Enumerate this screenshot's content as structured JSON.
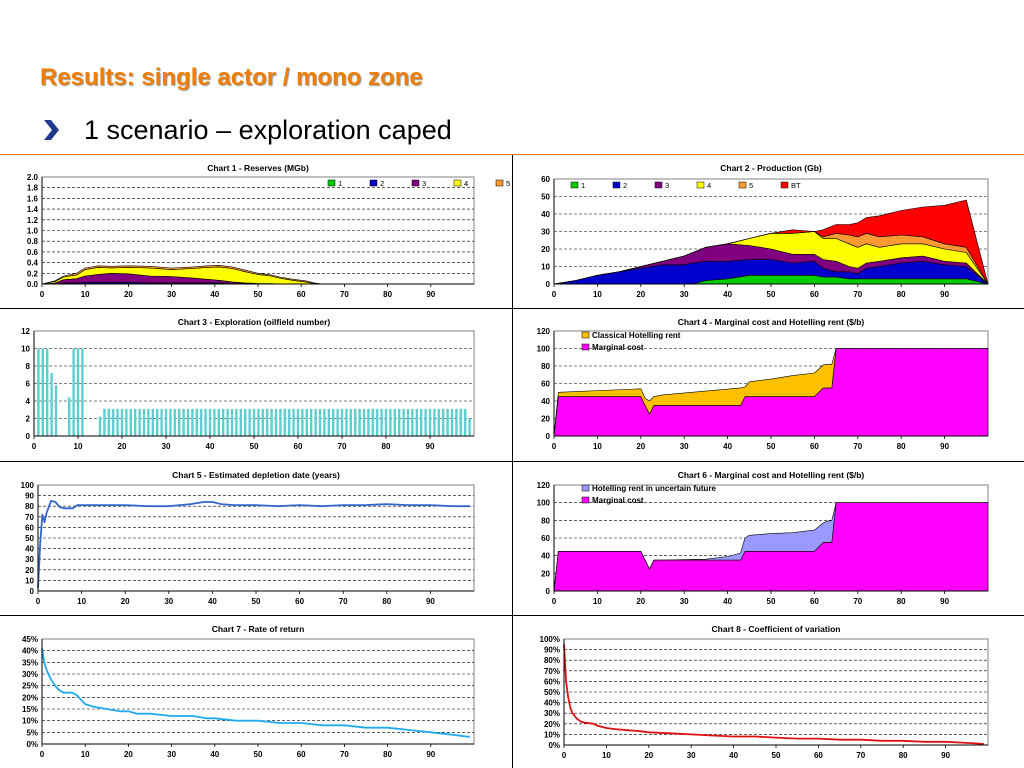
{
  "page": {
    "title": "Results: single actor / mono zone",
    "bullet": "1 scenario – exploration caped",
    "accent_color": "#f07c00",
    "bullet_icon": "arrow-bullet-icon"
  },
  "chart_data": [
    {
      "id": "chart1",
      "type": "area",
      "stacked": true,
      "title": "Chart 1 - Reserves (MGb)",
      "xlim": [
        0,
        100
      ],
      "ylim": [
        0,
        2.0
      ],
      "xticks": [
        0,
        10,
        20,
        30,
        40,
        50,
        60,
        70,
        80,
        90
      ],
      "yticks": [
        0,
        0.2,
        0.4,
        0.6,
        0.8,
        1.0,
        1.2,
        1.4,
        1.6,
        1.8,
        2.0
      ],
      "ytick_labels": [
        "0.0",
        "0.2",
        "0.4",
        "0.6",
        "0.8",
        "1.0",
        "1.2",
        "1.4",
        "1.6",
        "1.8",
        "2.0"
      ],
      "grid": true,
      "legend_position": "top-right",
      "x": [
        0,
        3,
        5,
        8,
        10,
        13,
        16,
        20,
        25,
        30,
        35,
        38,
        41,
        44,
        47,
        50,
        53,
        55,
        58,
        61,
        63,
        65,
        100
      ],
      "series": [
        {
          "name": "1",
          "color": "#00cc00",
          "values": [
            0,
            0,
            0,
            0,
            0,
            0,
            0,
            0,
            0,
            0,
            0,
            0,
            0,
            0,
            0,
            0,
            0,
            0,
            0,
            0,
            0,
            0,
            0
          ]
        },
        {
          "name": "2",
          "color": "#0000cc",
          "values": [
            0,
            0,
            0.02,
            0.02,
            0.03,
            0.03,
            0.03,
            0.03,
            0.02,
            0.02,
            0.02,
            0.02,
            0.02,
            0.01,
            0.01,
            0.01,
            0.01,
            0,
            0,
            0,
            0,
            0,
            0
          ]
        },
        {
          "name": "3",
          "color": "#800080",
          "values": [
            0,
            0.02,
            0.06,
            0.08,
            0.12,
            0.15,
            0.17,
            0.16,
            0.13,
            0.12,
            0.09,
            0.07,
            0.05,
            0.03,
            0.01,
            0,
            0,
            0,
            0,
            0,
            0,
            0,
            0
          ]
        },
        {
          "name": "4",
          "color": "#ffff00",
          "values": [
            0,
            0.03,
            0.05,
            0.07,
            0.12,
            0.13,
            0.1,
            0.12,
            0.15,
            0.13,
            0.18,
            0.22,
            0.25,
            0.25,
            0.21,
            0.17,
            0.14,
            0.11,
            0.07,
            0.04,
            0.01,
            0,
            0
          ]
        },
        {
          "name": "5",
          "color": "#ff9933",
          "values": [
            0,
            0.01,
            0.02,
            0.03,
            0.03,
            0.03,
            0.03,
            0.03,
            0.03,
            0.03,
            0.03,
            0.03,
            0.03,
            0.03,
            0.03,
            0.02,
            0.02,
            0.02,
            0.02,
            0.02,
            0.01,
            0,
            0
          ]
        }
      ]
    },
    {
      "id": "chart2",
      "type": "area",
      "stacked": true,
      "title": "Chart 2 - Production (Gb)",
      "xlim": [
        0,
        100
      ],
      "ylim": [
        0,
        60
      ],
      "xticks": [
        0,
        10,
        20,
        30,
        40,
        50,
        60,
        70,
        80,
        90
      ],
      "yticks": [
        0,
        10,
        20,
        30,
        40,
        50,
        60
      ],
      "grid": true,
      "legend_position": "top-left",
      "x": [
        0,
        5,
        10,
        15,
        20,
        25,
        30,
        32,
        35,
        40,
        45,
        50,
        55,
        60,
        62,
        65,
        68,
        70,
        72,
        75,
        80,
        85,
        90,
        95,
        100
      ],
      "series": [
        {
          "name": "1",
          "color": "#00cc00",
          "values": [
            0,
            0,
            0,
            0,
            0,
            0,
            0,
            0,
            2,
            3,
            5,
            5,
            5,
            5,
            4,
            4,
            3,
            3,
            3,
            3,
            3,
            3,
            3,
            3,
            0
          ]
        },
        {
          "name": "2",
          "color": "#0000cc",
          "values": [
            0,
            2,
            5,
            7,
            9,
            11,
            11,
            12,
            11,
            10,
            9,
            9,
            7,
            8,
            5,
            3,
            4,
            3,
            6,
            7,
            9,
            10,
            8,
            7,
            0
          ]
        },
        {
          "name": "3",
          "color": "#800080",
          "values": [
            0,
            0,
            0,
            0,
            1,
            2,
            5,
            6,
            8,
            10,
            8,
            6,
            5,
            4,
            5,
            6,
            3,
            3,
            3,
            3,
            3,
            3,
            2,
            2,
            0
          ]
        },
        {
          "name": "4",
          "color": "#ffff00",
          "values": [
            0,
            0,
            0,
            0,
            0,
            0,
            0,
            0,
            0,
            0,
            4,
            9,
            12,
            13,
            12,
            13,
            13,
            12,
            11,
            8,
            8,
            7,
            7,
            6,
            0
          ]
        },
        {
          "name": "5",
          "color": "#ff9933",
          "values": [
            0,
            0,
            0,
            0,
            0,
            0,
            0,
            0,
            0,
            0,
            0,
            0,
            0,
            0,
            1,
            3,
            5,
            6,
            6,
            6,
            5,
            4,
            3,
            3,
            0
          ]
        },
        {
          "name": "BT",
          "color": "#ff0000",
          "values": [
            0,
            0,
            0,
            0,
            0,
            0,
            0,
            0,
            0,
            0,
            0,
            0,
            2,
            0,
            4,
            5,
            6,
            8,
            9,
            12,
            14,
            17,
            22,
            27,
            0
          ]
        }
      ]
    },
    {
      "id": "chart3",
      "type": "bar",
      "title": "Chart 3 - Exploration (oilfield number)",
      "xlim": [
        0,
        100
      ],
      "ylim": [
        0,
        12
      ],
      "xticks": [
        0,
        10,
        20,
        30,
        40,
        50,
        60,
        70,
        80,
        90
      ],
      "yticks": [
        0,
        2,
        4,
        6,
        8,
        10,
        12
      ],
      "grid": true,
      "bar_color": "#5ecfcf",
      "x": [
        1,
        2,
        3,
        4,
        5,
        6,
        7,
        8,
        9,
        10,
        11,
        12,
        13,
        14,
        15,
        16,
        17,
        18,
        19,
        20,
        21,
        22,
        23,
        24,
        25,
        26,
        27,
        28,
        29,
        30,
        31,
        32,
        33,
        34,
        35,
        36,
        37,
        38,
        39,
        40,
        41,
        42,
        43,
        44,
        45,
        46,
        47,
        48,
        49,
        50,
        51,
        52,
        53,
        54,
        55,
        56,
        57,
        58,
        59,
        60,
        61,
        62,
        63,
        64,
        65,
        66,
        67,
        68,
        69,
        70,
        71,
        72,
        73,
        74,
        75,
        76,
        77,
        78,
        79,
        80,
        81,
        82,
        83,
        84,
        85,
        86,
        87,
        88,
        89,
        90,
        91,
        92,
        93,
        94,
        95,
        96,
        97,
        98,
        99
      ],
      "values": [
        10,
        10,
        10,
        7.2,
        5.8,
        0,
        0,
        4.4,
        10,
        10,
        10,
        0,
        0,
        0,
        2.2,
        3.1,
        3.1,
        3.1,
        3.1,
        3.1,
        3.1,
        3.1,
        3.1,
        3.1,
        3.1,
        3.1,
        3.1,
        3.1,
        3.1,
        3.1,
        3.1,
        3.1,
        3.1,
        3.1,
        3.1,
        3.1,
        3.1,
        3.1,
        3.1,
        3.1,
        3.1,
        3.1,
        3.1,
        3.1,
        3.1,
        3.1,
        3.1,
        3.1,
        3.1,
        3.1,
        3.1,
        3.1,
        3.1,
        3.1,
        3.1,
        3.1,
        3.1,
        3.1,
        3.1,
        3.1,
        3.1,
        3.1,
        3.1,
        3.1,
        3.1,
        3.1,
        3.1,
        3.1,
        3.1,
        3.1,
        3.1,
        3.1,
        3.1,
        3.1,
        3.1,
        3.1,
        3.1,
        3.1,
        3.1,
        3.1,
        3.1,
        3.1,
        3.1,
        3.1,
        3.1,
        3.1,
        3.1,
        3.1,
        3.1,
        3.1,
        3.1,
        3.1,
        3.1,
        3.1,
        3.1,
        3.1,
        3.1,
        3.1,
        2.0
      ]
    },
    {
      "id": "chart4",
      "type": "area",
      "stacked": true,
      "title": "Chart 4 - Marginal cost and Hotelling rent ($/b)",
      "xlim": [
        0,
        100
      ],
      "ylim": [
        0,
        120
      ],
      "xticks": [
        0,
        10,
        20,
        30,
        40,
        50,
        60,
        70,
        80,
        90
      ],
      "yticks": [
        0,
        20,
        40,
        60,
        80,
        100,
        120
      ],
      "grid": true,
      "legend_position": "top-left",
      "x": [
        0,
        1,
        20,
        21,
        22,
        23,
        25,
        43,
        44,
        45,
        50,
        55,
        60,
        62,
        63,
        64,
        65,
        100
      ],
      "series": [
        {
          "name": "Marginal cost",
          "color": "#ff00ff",
          "values": [
            0,
            45,
            45,
            35,
            25,
            35,
            35,
            35,
            45,
            45,
            45,
            45,
            45,
            55,
            55,
            55,
            100,
            100
          ]
        },
        {
          "name": "Classical Hotelling rent",
          "color": "#ffc000",
          "values": [
            0,
            5,
            9,
            8,
            15,
            10,
            12,
            20,
            11,
            17,
            20,
            24,
            27,
            26,
            27,
            27,
            0,
            0
          ]
        }
      ]
    },
    {
      "id": "chart5",
      "type": "line",
      "title": "Chart 5 - Estimated depletion date (years)",
      "xlim": [
        0,
        100
      ],
      "ylim": [
        0,
        100
      ],
      "xticks": [
        0,
        10,
        20,
        30,
        40,
        50,
        60,
        70,
        80,
        90
      ],
      "yticks": [
        0,
        10,
        20,
        30,
        40,
        50,
        60,
        70,
        80,
        90,
        100
      ],
      "grid": true,
      "series": [
        {
          "color": "#3366cc",
          "x": [
            0,
            0.5,
            1,
            1.5,
            2,
            3,
            4,
            5,
            6,
            8,
            9,
            10,
            15,
            20,
            25,
            30,
            35,
            38,
            40,
            42,
            45,
            50,
            55,
            60,
            65,
            70,
            75,
            80,
            85,
            90,
            95,
            99
          ],
          "y": [
            3,
            45,
            72,
            65,
            74,
            85,
            84,
            79,
            78,
            78,
            81,
            81,
            81,
            81,
            80,
            80,
            82,
            84,
            84,
            82,
            81,
            81,
            80,
            81,
            80,
            81,
            81,
            82,
            81,
            81,
            80,
            80
          ]
        }
      ]
    },
    {
      "id": "chart6",
      "type": "area",
      "stacked": true,
      "title": "Chart 6 - Marginal cost and Hotelling rent ($/b)",
      "xlim": [
        0,
        100
      ],
      "ylim": [
        0,
        120
      ],
      "xticks": [
        0,
        10,
        20,
        30,
        40,
        50,
        60,
        70,
        80,
        90
      ],
      "yticks": [
        0,
        20,
        40,
        60,
        80,
        100,
        120
      ],
      "grid": true,
      "legend_position": "top-left",
      "x": [
        0,
        1,
        20,
        21,
        22,
        23,
        25,
        35,
        40,
        43,
        44,
        45,
        50,
        55,
        60,
        62,
        63,
        64,
        65,
        100
      ],
      "series": [
        {
          "name": "Marginal cost",
          "color": "#ff00ff",
          "values": [
            0,
            45,
            45,
            35,
            25,
            35,
            35,
            35,
            35,
            35,
            45,
            45,
            45,
            45,
            45,
            55,
            55,
            55,
            100,
            100
          ]
        },
        {
          "name": "Hotelling rent in uncertain future",
          "color": "#9999ff",
          "values": [
            0,
            0,
            0,
            0,
            0,
            0,
            0,
            1,
            4,
            8,
            15,
            18,
            20,
            21,
            24,
            22,
            24,
            25,
            0,
            0
          ]
        }
      ]
    },
    {
      "id": "chart7",
      "type": "line",
      "title": "Chart 7 - Rate of return",
      "xlim": [
        0,
        100
      ],
      "ylim": [
        0,
        45
      ],
      "xticks": [
        0,
        10,
        20,
        30,
        40,
        50,
        60,
        70,
        80,
        90
      ],
      "yticks": [
        0,
        5,
        10,
        15,
        20,
        25,
        30,
        35,
        40,
        45
      ],
      "ytick_labels": [
        "0%",
        "5%",
        "10%",
        "15%",
        "20%",
        "25%",
        "30%",
        "35%",
        "40%",
        "45%"
      ],
      "grid": true,
      "series": [
        {
          "color": "#22aaee",
          "x": [
            0,
            0.5,
            1,
            2,
            3,
            4,
            5,
            6,
            7,
            8,
            9,
            10,
            12,
            15,
            18,
            20,
            22,
            25,
            30,
            35,
            38,
            40,
            45,
            50,
            55,
            60,
            65,
            70,
            75,
            80,
            85,
            90,
            95,
            99
          ],
          "y": [
            41,
            35,
            32,
            28,
            25,
            23,
            22,
            22,
            22,
            21,
            19,
            17,
            16,
            15,
            14,
            14,
            13,
            13,
            12,
            12,
            11,
            11,
            10,
            10,
            9,
            9,
            8,
            8,
            7,
            7,
            6,
            5,
            4,
            3
          ]
        }
      ]
    },
    {
      "id": "chart8",
      "type": "line",
      "title": "Chart 8 - Coefficient of variation",
      "xlim": [
        0,
        100
      ],
      "ylim": [
        0,
        100
      ],
      "xticks": [
        0,
        10,
        20,
        30,
        40,
        50,
        60,
        70,
        80,
        90
      ],
      "yticks": [
        0,
        10,
        20,
        30,
        40,
        50,
        60,
        70,
        80,
        90,
        100
      ],
      "ytick_labels": [
        "0%",
        "10%",
        "20%",
        "30%",
        "40%",
        "50%",
        "60%",
        "70%",
        "80%",
        "90%",
        "100%"
      ],
      "grid": true,
      "series": [
        {
          "color": "#dd1111",
          "x": [
            0,
            0.5,
            1,
            1.5,
            2,
            3,
            4,
            5,
            7,
            8,
            10,
            12,
            15,
            18,
            20,
            25,
            30,
            35,
            40,
            45,
            50,
            55,
            60,
            65,
            70,
            75,
            80,
            85,
            90,
            95,
            99
          ],
          "y": [
            95,
            60,
            45,
            35,
            30,
            25,
            22,
            21,
            20,
            18,
            16,
            15,
            14,
            13,
            12,
            11,
            10,
            9,
            8,
            8,
            7,
            6,
            6,
            5,
            5,
            4,
            4,
            3,
            3,
            2,
            1
          ]
        }
      ]
    }
  ]
}
